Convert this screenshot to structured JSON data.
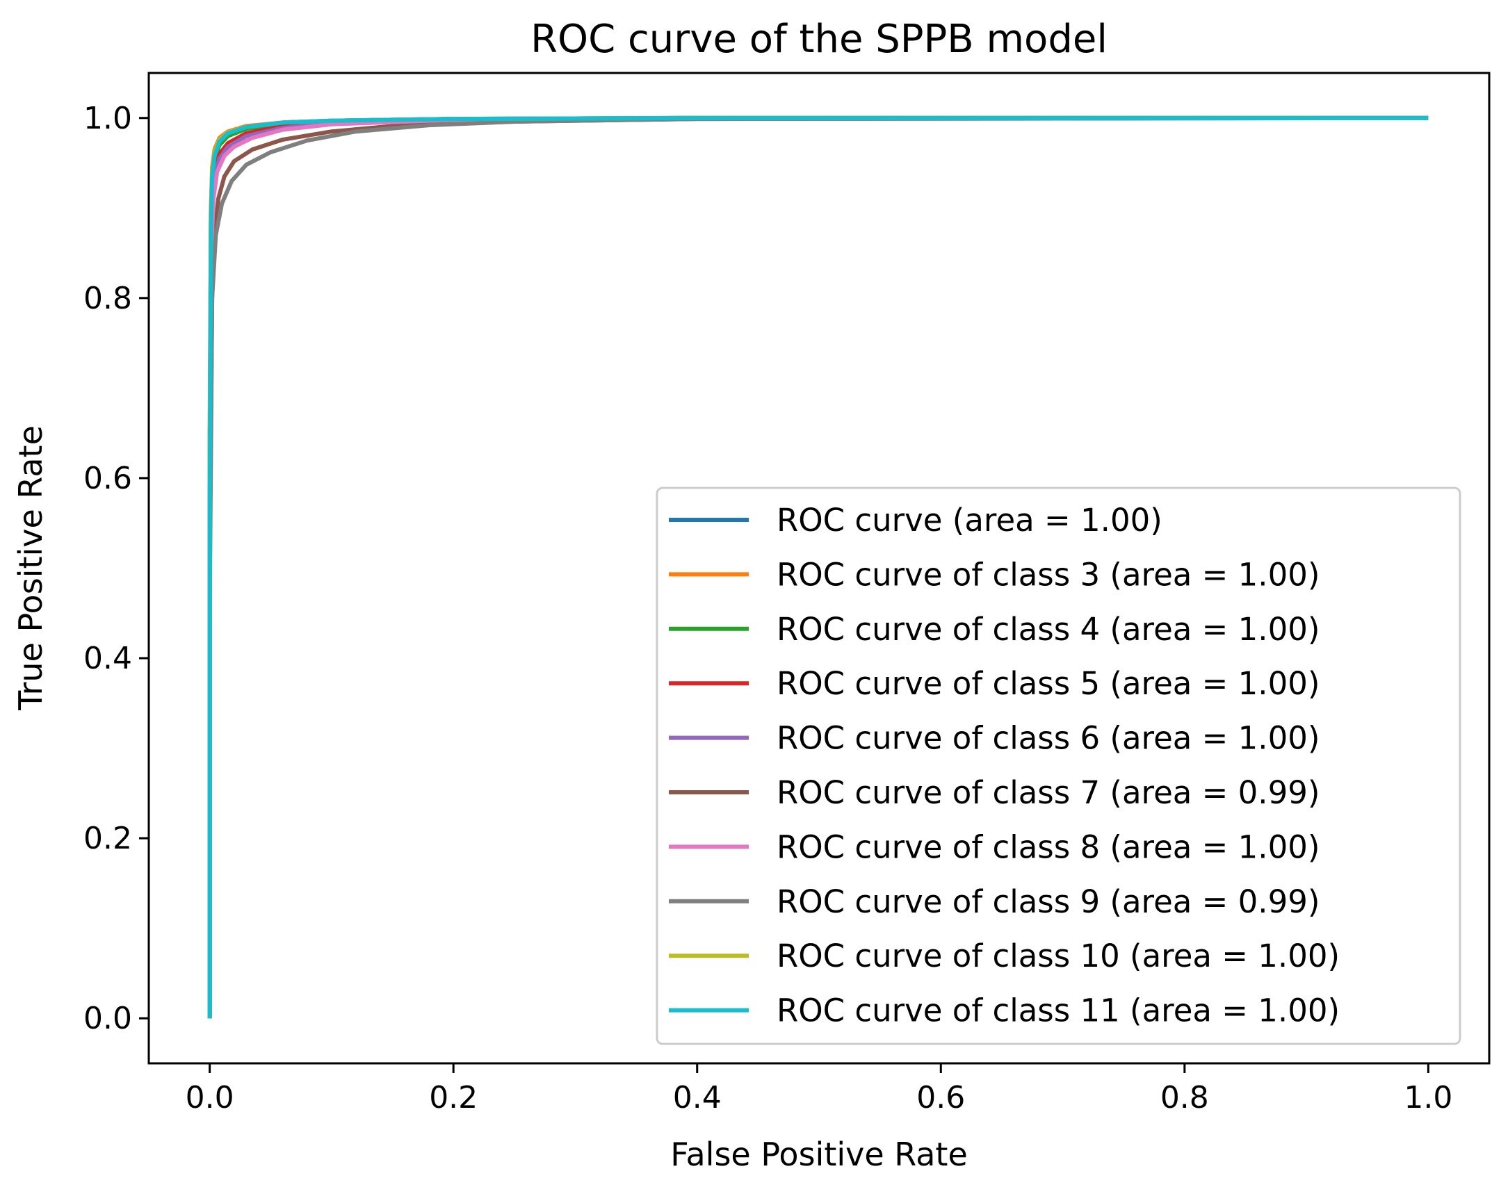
{
  "chart_data": {
    "type": "line",
    "title": "ROC curve of the SPPB model",
    "xlabel": "False Positive Rate",
    "ylabel": "True Positive Rate",
    "xlim": [
      -0.05,
      1.05
    ],
    "ylim": [
      -0.05,
      1.05
    ],
    "xticks": [
      "0.0",
      "0.2",
      "0.4",
      "0.6",
      "0.8",
      "1.0"
    ],
    "yticks": [
      "0.0",
      "0.2",
      "0.4",
      "0.6",
      "0.8",
      "1.0"
    ],
    "grid": false,
    "legend_position": "lower-right",
    "series": [
      {
        "name": "ROC curve (area = 1.00)",
        "color": "#1f77b4",
        "x": [
          0,
          0.0,
          0.001,
          0.002,
          0.004,
          0.008,
          0.015,
          0.03,
          0.06,
          0.1,
          0.2,
          0.4,
          1.0
        ],
        "y": [
          0,
          0.6,
          0.88,
          0.93,
          0.955,
          0.972,
          0.982,
          0.99,
          0.995,
          0.997,
          0.999,
          1.0,
          1.0
        ]
      },
      {
        "name": "ROC curve of class 3 (area = 1.00)",
        "color": "#ff7f0e",
        "x": [
          0,
          0.0,
          0.001,
          0.002,
          0.004,
          0.008,
          0.015,
          0.03,
          0.06,
          0.1,
          0.2,
          0.4,
          1.0
        ],
        "y": [
          0,
          0.65,
          0.9,
          0.945,
          0.965,
          0.978,
          0.985,
          0.991,
          0.995,
          0.997,
          0.999,
          1.0,
          1.0
        ]
      },
      {
        "name": "ROC curve of class 4 (area = 1.00)",
        "color": "#2ca02c",
        "x": [
          0,
          0.0,
          0.001,
          0.002,
          0.004,
          0.008,
          0.015,
          0.03,
          0.06,
          0.1,
          0.2,
          0.4,
          1.0
        ],
        "y": [
          0,
          0.6,
          0.87,
          0.93,
          0.955,
          0.97,
          0.98,
          0.988,
          0.994,
          0.997,
          0.999,
          1.0,
          1.0
        ]
      },
      {
        "name": "ROC curve of class 5 (area = 1.00)",
        "color": "#d62728",
        "x": [
          0,
          0.0,
          0.001,
          0.002,
          0.004,
          0.008,
          0.015,
          0.03,
          0.06,
          0.1,
          0.2,
          0.4,
          1.0
        ],
        "y": [
          0,
          0.55,
          0.85,
          0.91,
          0.94,
          0.96,
          0.972,
          0.983,
          0.991,
          0.995,
          0.998,
          1.0,
          1.0
        ]
      },
      {
        "name": "ROC curve of class 6 (area = 1.00)",
        "color": "#9467bd",
        "x": [
          0,
          0.0,
          0.001,
          0.002,
          0.004,
          0.008,
          0.015,
          0.03,
          0.06,
          0.1,
          0.2,
          0.4,
          1.0
        ],
        "y": [
          0,
          0.55,
          0.84,
          0.9,
          0.935,
          0.955,
          0.968,
          0.98,
          0.989,
          0.994,
          0.998,
          1.0,
          1.0
        ]
      },
      {
        "name": "ROC curve of class 7 (area = 0.99)",
        "color": "#8c564b",
        "x": [
          0,
          0.0,
          0.002,
          0.004,
          0.007,
          0.012,
          0.02,
          0.035,
          0.06,
          0.1,
          0.15,
          0.25,
          0.4,
          1.0
        ],
        "y": [
          0,
          0.5,
          0.8,
          0.87,
          0.91,
          0.935,
          0.952,
          0.965,
          0.976,
          0.985,
          0.991,
          0.996,
          0.999,
          1.0
        ]
      },
      {
        "name": "ROC curve of class 8 (area = 1.00)",
        "color": "#e377c2",
        "x": [
          0,
          0.0,
          0.001,
          0.003,
          0.006,
          0.012,
          0.02,
          0.035,
          0.06,
          0.1,
          0.2,
          0.4,
          1.0
        ],
        "y": [
          0,
          0.55,
          0.84,
          0.91,
          0.94,
          0.958,
          0.968,
          0.978,
          0.987,
          0.993,
          0.998,
          1.0,
          1.0
        ]
      },
      {
        "name": "ROC curve of class 9 (area = 0.99)",
        "color": "#7f7f7f",
        "x": [
          0,
          0.0,
          0.002,
          0.005,
          0.01,
          0.018,
          0.03,
          0.05,
          0.08,
          0.12,
          0.18,
          0.25,
          0.4,
          1.0
        ],
        "y": [
          0,
          0.45,
          0.8,
          0.87,
          0.905,
          0.93,
          0.948,
          0.962,
          0.975,
          0.985,
          0.992,
          0.996,
          0.999,
          1.0
        ]
      },
      {
        "name": "ROC curve of class 10 (area = 1.00)",
        "color": "#bcbd22",
        "x": [
          0,
          0.0,
          0.001,
          0.002,
          0.004,
          0.008,
          0.015,
          0.03,
          0.06,
          0.1,
          0.2,
          0.4,
          1.0
        ],
        "y": [
          0,
          0.62,
          0.89,
          0.94,
          0.962,
          0.976,
          0.984,
          0.99,
          0.995,
          0.997,
          0.999,
          1.0,
          1.0
        ]
      },
      {
        "name": "ROC curve of class 11 (area = 1.00)",
        "color": "#17becf",
        "x": [
          0,
          0.0,
          0.001,
          0.002,
          0.004,
          0.008,
          0.015,
          0.03,
          0.06,
          0.1,
          0.2,
          0.4,
          1.0
        ],
        "y": [
          0,
          0.58,
          0.88,
          0.935,
          0.958,
          0.974,
          0.983,
          0.99,
          0.995,
          0.997,
          0.999,
          1.0,
          1.0
        ]
      }
    ]
  }
}
